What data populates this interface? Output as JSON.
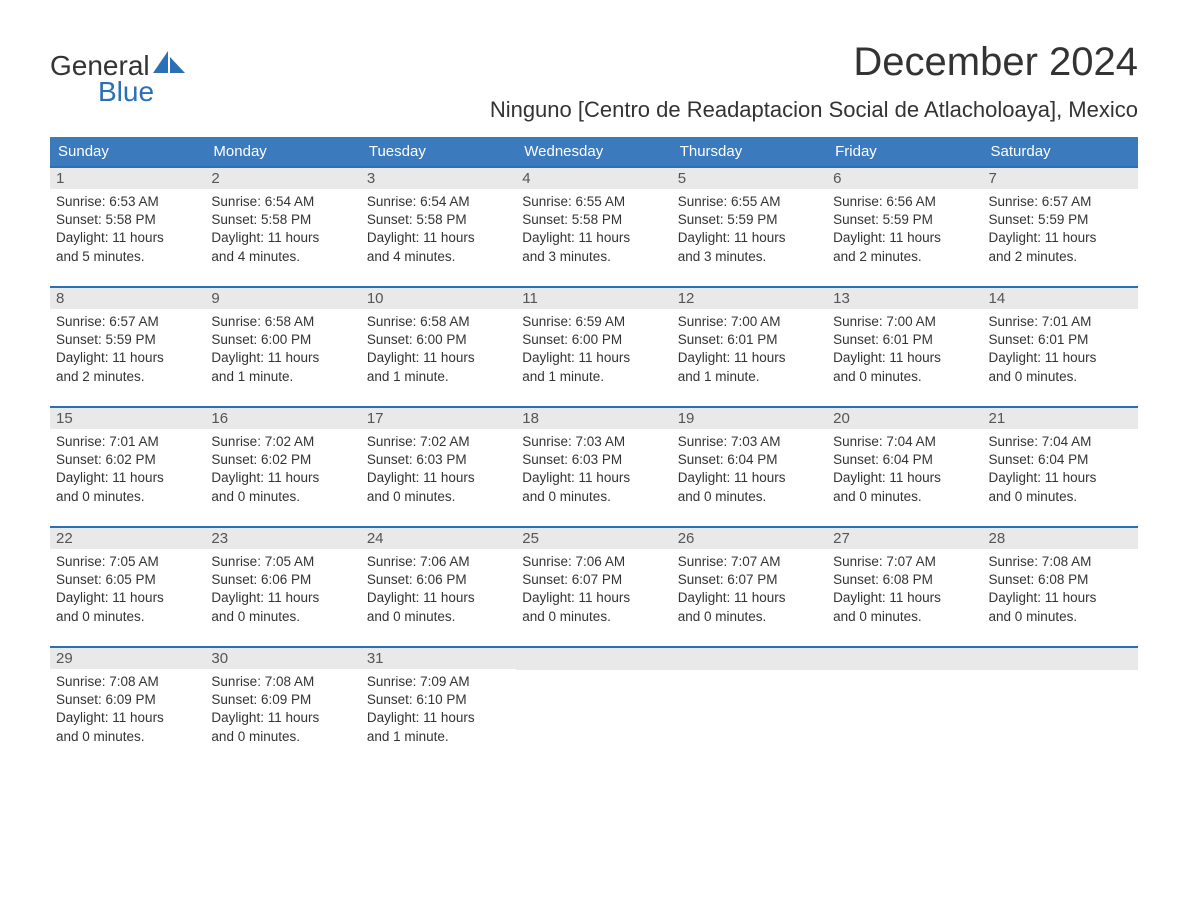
{
  "logo": {
    "text1": "General",
    "text2": "Blue",
    "shape_color": "#2b6fb5"
  },
  "title": "December 2024",
  "location": "Ninguno [Centro de Readaptacion Social de Atlacholoaya], Mexico",
  "colors": {
    "header_bg": "#3a7abd",
    "header_text": "#ffffff",
    "week_border": "#2b6fb5",
    "daynum_bg": "#e9e9e9",
    "body_text": "#333333"
  },
  "day_headers": [
    "Sunday",
    "Monday",
    "Tuesday",
    "Wednesday",
    "Thursday",
    "Friday",
    "Saturday"
  ],
  "weeks": [
    [
      {
        "day": "1",
        "sunrise": "Sunrise: 6:53 AM",
        "sunset": "Sunset: 5:58 PM",
        "daylight1": "Daylight: 11 hours",
        "daylight2": "and 5 minutes."
      },
      {
        "day": "2",
        "sunrise": "Sunrise: 6:54 AM",
        "sunset": "Sunset: 5:58 PM",
        "daylight1": "Daylight: 11 hours",
        "daylight2": "and 4 minutes."
      },
      {
        "day": "3",
        "sunrise": "Sunrise: 6:54 AM",
        "sunset": "Sunset: 5:58 PM",
        "daylight1": "Daylight: 11 hours",
        "daylight2": "and 4 minutes."
      },
      {
        "day": "4",
        "sunrise": "Sunrise: 6:55 AM",
        "sunset": "Sunset: 5:58 PM",
        "daylight1": "Daylight: 11 hours",
        "daylight2": "and 3 minutes."
      },
      {
        "day": "5",
        "sunrise": "Sunrise: 6:55 AM",
        "sunset": "Sunset: 5:59 PM",
        "daylight1": "Daylight: 11 hours",
        "daylight2": "and 3 minutes."
      },
      {
        "day": "6",
        "sunrise": "Sunrise: 6:56 AM",
        "sunset": "Sunset: 5:59 PM",
        "daylight1": "Daylight: 11 hours",
        "daylight2": "and 2 minutes."
      },
      {
        "day": "7",
        "sunrise": "Sunrise: 6:57 AM",
        "sunset": "Sunset: 5:59 PM",
        "daylight1": "Daylight: 11 hours",
        "daylight2": "and 2 minutes."
      }
    ],
    [
      {
        "day": "8",
        "sunrise": "Sunrise: 6:57 AM",
        "sunset": "Sunset: 5:59 PM",
        "daylight1": "Daylight: 11 hours",
        "daylight2": "and 2 minutes."
      },
      {
        "day": "9",
        "sunrise": "Sunrise: 6:58 AM",
        "sunset": "Sunset: 6:00 PM",
        "daylight1": "Daylight: 11 hours",
        "daylight2": "and 1 minute."
      },
      {
        "day": "10",
        "sunrise": "Sunrise: 6:58 AM",
        "sunset": "Sunset: 6:00 PM",
        "daylight1": "Daylight: 11 hours",
        "daylight2": "and 1 minute."
      },
      {
        "day": "11",
        "sunrise": "Sunrise: 6:59 AM",
        "sunset": "Sunset: 6:00 PM",
        "daylight1": "Daylight: 11 hours",
        "daylight2": "and 1 minute."
      },
      {
        "day": "12",
        "sunrise": "Sunrise: 7:00 AM",
        "sunset": "Sunset: 6:01 PM",
        "daylight1": "Daylight: 11 hours",
        "daylight2": "and 1 minute."
      },
      {
        "day": "13",
        "sunrise": "Sunrise: 7:00 AM",
        "sunset": "Sunset: 6:01 PM",
        "daylight1": "Daylight: 11 hours",
        "daylight2": "and 0 minutes."
      },
      {
        "day": "14",
        "sunrise": "Sunrise: 7:01 AM",
        "sunset": "Sunset: 6:01 PM",
        "daylight1": "Daylight: 11 hours",
        "daylight2": "and 0 minutes."
      }
    ],
    [
      {
        "day": "15",
        "sunrise": "Sunrise: 7:01 AM",
        "sunset": "Sunset: 6:02 PM",
        "daylight1": "Daylight: 11 hours",
        "daylight2": "and 0 minutes."
      },
      {
        "day": "16",
        "sunrise": "Sunrise: 7:02 AM",
        "sunset": "Sunset: 6:02 PM",
        "daylight1": "Daylight: 11 hours",
        "daylight2": "and 0 minutes."
      },
      {
        "day": "17",
        "sunrise": "Sunrise: 7:02 AM",
        "sunset": "Sunset: 6:03 PM",
        "daylight1": "Daylight: 11 hours",
        "daylight2": "and 0 minutes."
      },
      {
        "day": "18",
        "sunrise": "Sunrise: 7:03 AM",
        "sunset": "Sunset: 6:03 PM",
        "daylight1": "Daylight: 11 hours",
        "daylight2": "and 0 minutes."
      },
      {
        "day": "19",
        "sunrise": "Sunrise: 7:03 AM",
        "sunset": "Sunset: 6:04 PM",
        "daylight1": "Daylight: 11 hours",
        "daylight2": "and 0 minutes."
      },
      {
        "day": "20",
        "sunrise": "Sunrise: 7:04 AM",
        "sunset": "Sunset: 6:04 PM",
        "daylight1": "Daylight: 11 hours",
        "daylight2": "and 0 minutes."
      },
      {
        "day": "21",
        "sunrise": "Sunrise: 7:04 AM",
        "sunset": "Sunset: 6:04 PM",
        "daylight1": "Daylight: 11 hours",
        "daylight2": "and 0 minutes."
      }
    ],
    [
      {
        "day": "22",
        "sunrise": "Sunrise: 7:05 AM",
        "sunset": "Sunset: 6:05 PM",
        "daylight1": "Daylight: 11 hours",
        "daylight2": "and 0 minutes."
      },
      {
        "day": "23",
        "sunrise": "Sunrise: 7:05 AM",
        "sunset": "Sunset: 6:06 PM",
        "daylight1": "Daylight: 11 hours",
        "daylight2": "and 0 minutes."
      },
      {
        "day": "24",
        "sunrise": "Sunrise: 7:06 AM",
        "sunset": "Sunset: 6:06 PM",
        "daylight1": "Daylight: 11 hours",
        "daylight2": "and 0 minutes."
      },
      {
        "day": "25",
        "sunrise": "Sunrise: 7:06 AM",
        "sunset": "Sunset: 6:07 PM",
        "daylight1": "Daylight: 11 hours",
        "daylight2": "and 0 minutes."
      },
      {
        "day": "26",
        "sunrise": "Sunrise: 7:07 AM",
        "sunset": "Sunset: 6:07 PM",
        "daylight1": "Daylight: 11 hours",
        "daylight2": "and 0 minutes."
      },
      {
        "day": "27",
        "sunrise": "Sunrise: 7:07 AM",
        "sunset": "Sunset: 6:08 PM",
        "daylight1": "Daylight: 11 hours",
        "daylight2": "and 0 minutes."
      },
      {
        "day": "28",
        "sunrise": "Sunrise: 7:08 AM",
        "sunset": "Sunset: 6:08 PM",
        "daylight1": "Daylight: 11 hours",
        "daylight2": "and 0 minutes."
      }
    ],
    [
      {
        "day": "29",
        "sunrise": "Sunrise: 7:08 AM",
        "sunset": "Sunset: 6:09 PM",
        "daylight1": "Daylight: 11 hours",
        "daylight2": "and 0 minutes."
      },
      {
        "day": "30",
        "sunrise": "Sunrise: 7:08 AM",
        "sunset": "Sunset: 6:09 PM",
        "daylight1": "Daylight: 11 hours",
        "daylight2": "and 0 minutes."
      },
      {
        "day": "31",
        "sunrise": "Sunrise: 7:09 AM",
        "sunset": "Sunset: 6:10 PM",
        "daylight1": "Daylight: 11 hours",
        "daylight2": "and 1 minute."
      },
      null,
      null,
      null,
      null
    ]
  ]
}
